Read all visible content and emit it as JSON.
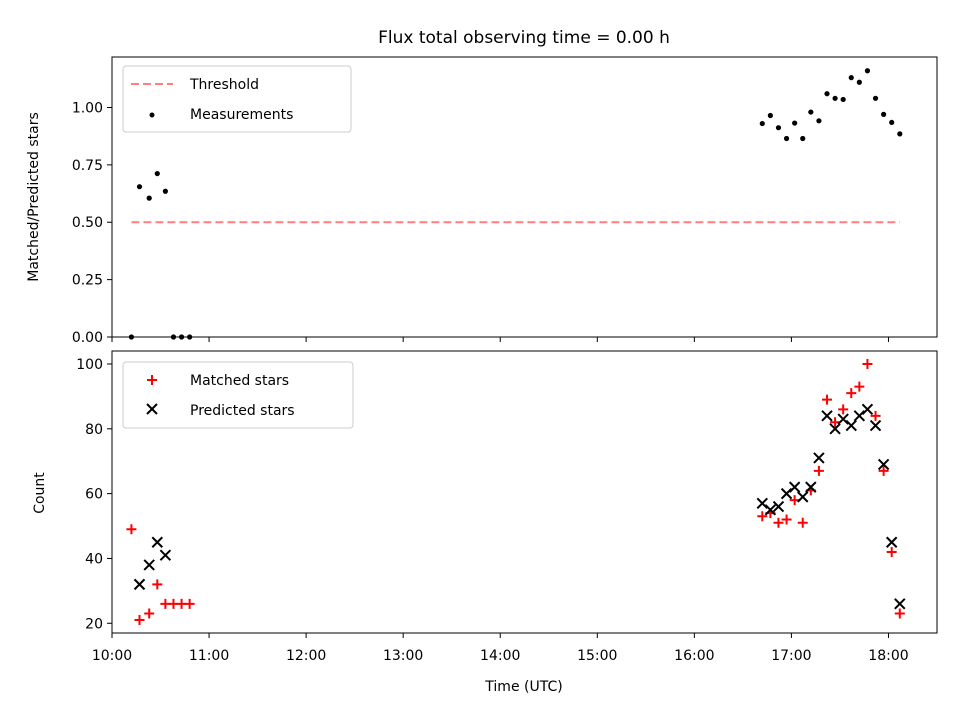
{
  "chart_data": [
    {
      "type": "scatter",
      "title": "Flux total observing time = 0.00 h",
      "xlabel": "",
      "ylabel": "Matched/Predicted stars",
      "xlim": [
        "10:00",
        "18:30"
      ],
      "ylim": [
        0,
        1.22
      ],
      "yticks": [
        0.0,
        0.25,
        0.5,
        0.75,
        1.0
      ],
      "ytick_labels": [
        "0.00",
        "0.25",
        "0.50",
        "0.75",
        "1.00"
      ],
      "legend_position": "top-left",
      "series": [
        {
          "name": "Threshold",
          "kind": "line",
          "style": "dashed",
          "color": "#ff7f7f",
          "points": [
            [
              "10:12",
              0.5
            ],
            [
              "18:07",
              0.5
            ]
          ]
        },
        {
          "name": "Measurements",
          "kind": "scatter",
          "marker": "dot",
          "color": "#000000",
          "points": [
            [
              "10:12",
              0.0
            ],
            [
              "10:17",
              0.655
            ],
            [
              "10:23",
              0.605
            ],
            [
              "10:28",
              0.712
            ],
            [
              "10:33",
              0.635
            ],
            [
              "10:38",
              0.0
            ],
            [
              "10:43",
              0.0
            ],
            [
              "10:48",
              0.0
            ],
            [
              "16:42",
              0.93
            ],
            [
              "16:47",
              0.965
            ],
            [
              "16:52",
              0.912
            ],
            [
              "16:57",
              0.865
            ],
            [
              "17:02",
              0.932
            ],
            [
              "17:07",
              0.865
            ],
            [
              "17:12",
              0.98
            ],
            [
              "17:17",
              0.942
            ],
            [
              "17:22",
              1.06
            ],
            [
              "17:27",
              1.04
            ],
            [
              "17:32",
              1.035
            ],
            [
              "17:37",
              1.13
            ],
            [
              "17:42",
              1.11
            ],
            [
              "17:47",
              1.16
            ],
            [
              "17:52",
              1.04
            ],
            [
              "17:57",
              0.97
            ],
            [
              "18:02",
              0.935
            ],
            [
              "18:07",
              0.885
            ]
          ]
        }
      ]
    },
    {
      "type": "scatter",
      "title": "",
      "xlabel": "Time (UTC)",
      "ylabel": "Count",
      "xlim": [
        "10:00",
        "18:30"
      ],
      "ylim": [
        17,
        104
      ],
      "xticks": [
        "10:00",
        "11:00",
        "12:00",
        "13:00",
        "14:00",
        "15:00",
        "16:00",
        "17:00",
        "18:00"
      ],
      "yticks": [
        20,
        40,
        60,
        80,
        100
      ],
      "legend_position": "top-left",
      "series": [
        {
          "name": "Matched stars",
          "marker": "plus",
          "color": "#ff0000",
          "points": [
            [
              "10:12",
              49
            ],
            [
              "10:17",
              21
            ],
            [
              "10:23",
              23
            ],
            [
              "10:28",
              32
            ],
            [
              "10:33",
              26
            ],
            [
              "10:38",
              26
            ],
            [
              "10:43",
              26
            ],
            [
              "10:48",
              26
            ],
            [
              "16:42",
              53
            ],
            [
              "16:47",
              54
            ],
            [
              "16:52",
              51
            ],
            [
              "16:57",
              52
            ],
            [
              "17:02",
              58
            ],
            [
              "17:07",
              51
            ],
            [
              "17:12",
              61
            ],
            [
              "17:17",
              67
            ],
            [
              "17:22",
              89
            ],
            [
              "17:27",
              82
            ],
            [
              "17:32",
              86
            ],
            [
              "17:37",
              91
            ],
            [
              "17:42",
              93
            ],
            [
              "17:47",
              100
            ],
            [
              "17:52",
              84
            ],
            [
              "17:57",
              67
            ],
            [
              "18:02",
              42
            ],
            [
              "18:07",
              23
            ]
          ]
        },
        {
          "name": "Predicted stars",
          "marker": "x",
          "color": "#000000",
          "points": [
            [
              "10:17",
              32
            ],
            [
              "10:23",
              38
            ],
            [
              "10:28",
              45
            ],
            [
              "10:33",
              41
            ],
            [
              "16:42",
              57
            ],
            [
              "16:47",
              55
            ],
            [
              "16:52",
              56
            ],
            [
              "16:57",
              60
            ],
            [
              "17:02",
              62
            ],
            [
              "17:07",
              59
            ],
            [
              "17:12",
              62
            ],
            [
              "17:17",
              71
            ],
            [
              "17:22",
              84
            ],
            [
              "17:27",
              80
            ],
            [
              "17:32",
              83
            ],
            [
              "17:37",
              81
            ],
            [
              "17:42",
              84
            ],
            [
              "17:47",
              86
            ],
            [
              "17:52",
              81
            ],
            [
              "17:57",
              69
            ],
            [
              "18:02",
              45
            ],
            [
              "18:07",
              26
            ]
          ]
        }
      ]
    }
  ]
}
